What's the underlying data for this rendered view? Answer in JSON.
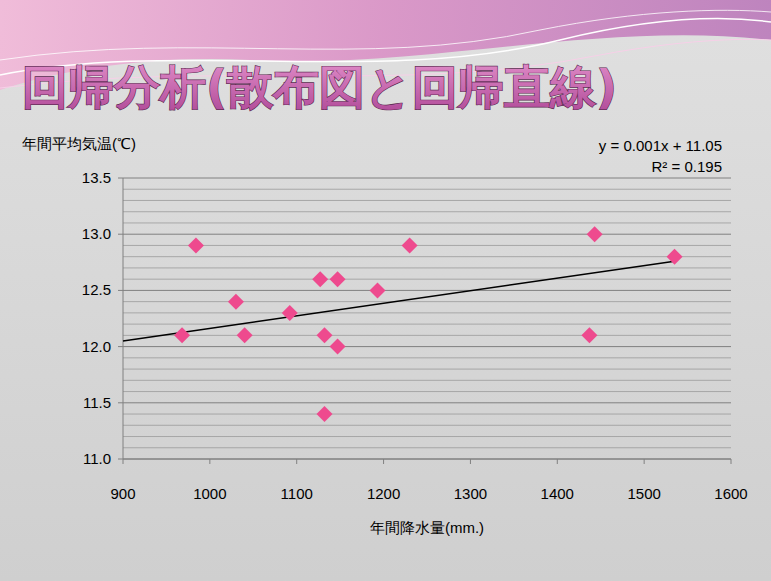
{
  "chart_data": {
    "type": "scatter",
    "title": "回帰分析(散布図と回帰直線)",
    "x_label": "年間降水量(mm.)",
    "y_label": "年間平均気温(℃)",
    "annotations": [
      "y = 0.001x + 11.05",
      "R² = 0.195"
    ],
    "x": [
      968,
      984,
      1030,
      1040,
      1092,
      1127,
      1132,
      1132,
      1147,
      1147,
      1193,
      1230,
      1437,
      1443,
      1535
    ],
    "values": [
      12.1,
      12.9,
      12.4,
      12.1,
      12.3,
      12.6,
      12.1,
      11.4,
      12.6,
      12.0,
      12.5,
      12.9,
      12.1,
      13.0,
      12.8
    ],
    "color": "#ee4a8e",
    "marker": "diamond",
    "trendline": {
      "x": [
        900,
        1535
      ],
      "values": [
        12.05,
        12.76
      ],
      "color": "#000000"
    },
    "xlim": [
      900,
      1600
    ],
    "xticks": [
      900,
      1000,
      1100,
      1200,
      1300,
      1400,
      1500,
      1600
    ],
    "ylim": [
      11.0,
      13.5
    ],
    "yticks": [
      {
        "value": 11.0,
        "label": "11.0"
      },
      {
        "value": 11.5,
        "label": "11.5"
      },
      {
        "value": 12.0,
        "label": "12.0"
      },
      {
        "value": 12.5,
        "label": "12.5"
      },
      {
        "value": 13.0,
        "label": "13.0"
      },
      {
        "value": 13.5,
        "label": "13.5"
      }
    ],
    "grid": true
  }
}
